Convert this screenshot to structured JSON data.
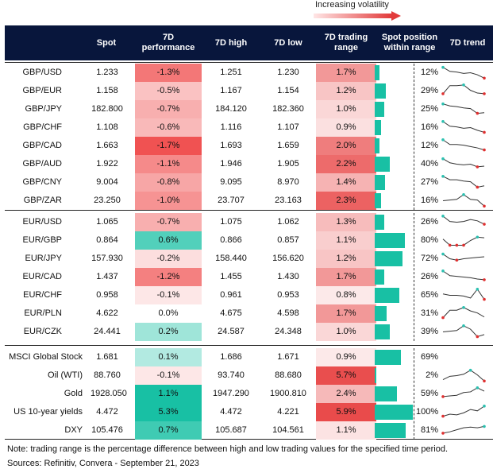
{
  "volatility_label": "Increasing volatility",
  "headers": {
    "spot": "Spot",
    "perf": "7D\nperformance",
    "high": "7D high",
    "low": "7D low",
    "range": "7D trading\nrange",
    "position": "Spot position\nwithin range",
    "trend": "7D trend"
  },
  "groups": [
    {
      "rows": [
        {
          "pair": "GBP/USD",
          "spot": "1.233",
          "perf": "-1.3%",
          "high": "1.251",
          "low": "1.230",
          "range": "1.7%",
          "pos": "12%",
          "pos_val": 12,
          "perf_val": -1.3,
          "range_val": 1.7,
          "trend": [
            0.9,
            0.6,
            0.55,
            0.45,
            0.5,
            0.35,
            0.1
          ]
        },
        {
          "pair": "GBP/EUR",
          "spot": "1.158",
          "perf": "-0.5%",
          "high": "1.167",
          "low": "1.154",
          "range": "1.2%",
          "pos": "29%",
          "pos_val": 29,
          "perf_val": -0.5,
          "range_val": 1.2,
          "trend": [
            0.3,
            0.9,
            0.9,
            0.95,
            0.55,
            0.35,
            0.3
          ]
        },
        {
          "pair": "GBP/JPY",
          "spot": "182.800",
          "perf": "-0.7%",
          "high": "184.120",
          "low": "182.360",
          "range": "1.0%",
          "pos": "25%",
          "pos_val": 25,
          "perf_val": -0.7,
          "range_val": 1.0,
          "trend": [
            0.9,
            0.75,
            0.7,
            0.6,
            0.55,
            0.2,
            0.25
          ]
        },
        {
          "pair": "GBP/CHF",
          "spot": "1.108",
          "perf": "-0.6%",
          "high": "1.116",
          "low": "1.107",
          "range": "0.9%",
          "pos": "16%",
          "pos_val": 16,
          "perf_val": -0.6,
          "range_val": 0.9,
          "trend": [
            0.95,
            0.6,
            0.55,
            0.45,
            0.5,
            0.3,
            0.15
          ]
        },
        {
          "pair": "GBP/CAD",
          "spot": "1.663",
          "perf": "-1.7%",
          "high": "1.693",
          "low": "1.659",
          "range": "2.0%",
          "pos": "12%",
          "pos_val": 12,
          "perf_val": -1.7,
          "range_val": 2.0,
          "trend": [
            0.95,
            0.6,
            0.6,
            0.55,
            0.45,
            0.35,
            0.2
          ]
        },
        {
          "pair": "GBP/AUD",
          "spot": "1.922",
          "perf": "-1.1%",
          "high": "1.946",
          "low": "1.905",
          "range": "2.2%",
          "pos": "40%",
          "pos_val": 40,
          "perf_val": -1.1,
          "range_val": 2.2,
          "trend": [
            0.9,
            0.6,
            0.5,
            0.45,
            0.5,
            0.3,
            0.35
          ]
        },
        {
          "pair": "GBP/CNY",
          "spot": "9.004",
          "perf": "-0.8%",
          "high": "9.095",
          "low": "8.970",
          "range": "1.4%",
          "pos": "27%",
          "pos_val": 27,
          "perf_val": -0.8,
          "range_val": 1.4,
          "trend": [
            0.95,
            0.7,
            0.7,
            0.6,
            0.55,
            0.15,
            0.25
          ]
        },
        {
          "pair": "GBP/ZAR",
          "spot": "23.250",
          "perf": "-1.0%",
          "high": "23.707",
          "low": "23.163",
          "range": "2.3%",
          "pos": "16%",
          "pos_val": 16,
          "perf_val": -1.0,
          "range_val": 2.3,
          "trend": [
            0.5,
            0.55,
            0.6,
            0.95,
            0.6,
            0.55,
            0.1
          ]
        }
      ]
    },
    {
      "rows": [
        {
          "pair": "EUR/USD",
          "spot": "1.065",
          "perf": "-0.7%",
          "high": "1.075",
          "low": "1.062",
          "range": "1.3%",
          "pos": "26%",
          "pos_val": 26,
          "perf_val": -0.7,
          "range_val": 1.3,
          "trend": [
            0.95,
            0.55,
            0.5,
            0.55,
            0.7,
            0.6,
            0.35
          ]
        },
        {
          "pair": "EUR/GBP",
          "spot": "0.864",
          "perf": "0.6%",
          "high": "0.866",
          "low": "0.857",
          "range": "1.1%",
          "pos": "80%",
          "pos_val": 80,
          "perf_val": 0.6,
          "range_val": 1.1,
          "trend": [
            0.6,
            0.15,
            0.15,
            0.15,
            0.5,
            0.75,
            0.7
          ]
        },
        {
          "pair": "EUR/JPY",
          "spot": "157.930",
          "perf": "-0.2%",
          "high": "158.440",
          "low": "156.620",
          "range": "1.2%",
          "pos": "72%",
          "pos_val": 72,
          "perf_val": -0.2,
          "range_val": 1.2,
          "trend": [
            0.85,
            0.5,
            0.4,
            0.5,
            0.55,
            0.6,
            0.65
          ]
        },
        {
          "pair": "EUR/CAD",
          "spot": "1.437",
          "perf": "-1.2%",
          "high": "1.455",
          "low": "1.430",
          "range": "1.7%",
          "pos": "26%",
          "pos_val": 26,
          "perf_val": -1.2,
          "range_val": 1.7,
          "trend": [
            0.95,
            0.6,
            0.55,
            0.5,
            0.45,
            0.35,
            0.3
          ]
        },
        {
          "pair": "EUR/CHF",
          "spot": "0.958",
          "perf": "-0.1%",
          "high": "0.961",
          "low": "0.953",
          "range": "0.8%",
          "pos": "65%",
          "pos_val": 65,
          "perf_val": -0.1,
          "range_val": 0.8,
          "trend": [
            0.6,
            0.5,
            0.5,
            0.45,
            0.3,
            0.95,
            0.2
          ]
        },
        {
          "pair": "EUR/PLN",
          "spot": "4.622",
          "perf": "0.0%",
          "high": "4.675",
          "low": "4.598",
          "range": "1.7%",
          "pos": "31%",
          "pos_val": 31,
          "perf_val": 0.0,
          "range_val": 1.7,
          "trend": [
            0.2,
            0.75,
            0.75,
            0.95,
            0.7,
            0.55,
            0.25
          ]
        },
        {
          "pair": "EUR/CZK",
          "spot": "24.441",
          "perf": "0.2%",
          "high": "24.587",
          "low": "24.348",
          "range": "1.0%",
          "pos": "39%",
          "pos_val": 39,
          "perf_val": 0.2,
          "range_val": 1.0,
          "trend": [
            0.5,
            0.55,
            0.6,
            0.95,
            0.7,
            0.15,
            0.3
          ]
        }
      ]
    },
    {
      "rows": [
        {
          "pair": "MSCI Global Stock",
          "spot": "1.681",
          "perf": "0.1%",
          "high": "1.686",
          "low": "1.671",
          "range": "0.9%",
          "pos": "69%",
          "pos_val": 69,
          "perf_val": 0.1,
          "range_val": 0.9,
          "trend": []
        },
        {
          "pair": "Oil (WTI)",
          "spot": "88.760",
          "perf": "-0.1%",
          "high": "93.740",
          "low": "88.680",
          "range": "5.7%",
          "pos": "2%",
          "pos_val": 2,
          "perf_val": -0.1,
          "range_val": 5.7,
          "trend": [
            0.2,
            0.45,
            0.5,
            0.6,
            0.9,
            0.55,
            0.1
          ]
        },
        {
          "pair": "Gold",
          "spot": "1928.050",
          "perf": "1.1%",
          "high": "1947.290",
          "low": "1900.810",
          "range": "2.4%",
          "pos": "59%",
          "pos_val": 59,
          "perf_val": 1.1,
          "range_val": 2.4,
          "trend": [
            0.3,
            0.35,
            0.4,
            0.6,
            0.65,
            0.95,
            0.7
          ]
        },
        {
          "pair": "US 10-year yields",
          "spot": "4.472",
          "perf": "5.3%",
          "high": "4.472",
          "low": "4.221",
          "range": "5.9%",
          "pos": "100%",
          "pos_val": 100,
          "perf_val": 5.3,
          "range_val": 5.9,
          "trend": [
            0.2,
            0.35,
            0.3,
            0.45,
            0.7,
            0.6,
            0.95
          ]
        },
        {
          "pair": "DXY",
          "spot": "105.476",
          "perf": "0.7%",
          "high": "105.687",
          "low": "104.561",
          "range": "1.1%",
          "pos": "81%",
          "pos_val": 81,
          "perf_val": 0.7,
          "range_val": 1.1,
          "trend": [
            0.3,
            0.4,
            0.55,
            0.7,
            0.75,
            0.7,
            0.8
          ]
        }
      ]
    }
  ],
  "note": "Note: trading range is the percentage difference between high and low trading values for the specified time period.",
  "sources": "Sources: Refinitiv, Convera - September 21, 2023",
  "colors": {
    "header": "#08163c",
    "teal": "#18c0a4",
    "red": "#e94b4b",
    "dot_hi": "#2bc0b0",
    "dot_lo": "#e03030"
  },
  "chart_data": {
    "type": "table",
    "columns": [
      "Spot",
      "7D performance",
      "7D high",
      "7D low",
      "7D trading range",
      "Spot position within range",
      "7D trend"
    ]
  }
}
